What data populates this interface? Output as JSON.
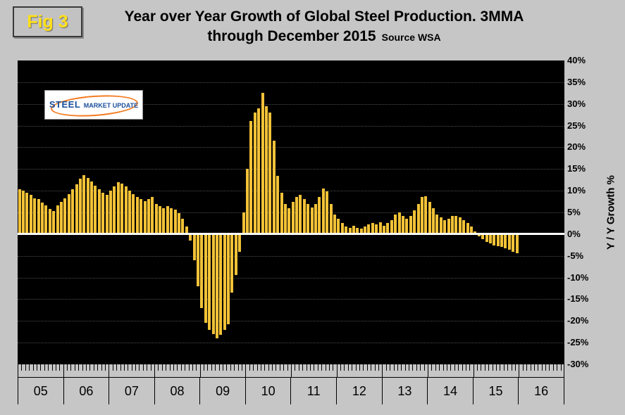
{
  "figure": {
    "label": "Fig 3"
  },
  "title": {
    "line1": "Year over Year Growth of Global Steel Production. 3MMA",
    "line2": "through December 2015",
    "source": "Source WSA"
  },
  "logo": {
    "steel": "STEEL",
    "rest": "MARKET UPDATE"
  },
  "axis": {
    "ylabel": "Y / Y Growth %",
    "yticks": [
      "40%",
      "35%",
      "30%",
      "25%",
      "20%",
      "15%",
      "10%",
      "5%",
      "0%",
      "-5%",
      "-10%",
      "-15%",
      "-20%",
      "-25%",
      "-30%"
    ],
    "years": [
      "05",
      "06",
      "07",
      "08",
      "09",
      "10",
      "11",
      "12",
      "13",
      "14",
      "15",
      "16"
    ]
  },
  "colors": {
    "bar": "#F2C237",
    "plot_bg": "#000000",
    "zero_line": "#FFFFFF",
    "page_bg": "#C6C6C6",
    "fig_label_text": "#FFE019",
    "logo_blue": "#1A4F9C",
    "logo_orange": "#F47B20"
  },
  "chart_data": {
    "type": "bar",
    "title": "Year over Year Growth of Global Steel Production. 3MMA through December 2015",
    "source": "WSA",
    "xlabel": "",
    "ylabel": "Y / Y Growth %",
    "ylim": [
      -30,
      40
    ],
    "ytick_step": 5,
    "frequency": "monthly",
    "x_start": "2005-01",
    "x_end": "2015-12",
    "x_axis_year_groups": [
      "05",
      "06",
      "07",
      "08",
      "09",
      "10",
      "11",
      "12",
      "13",
      "14",
      "15",
      "16"
    ],
    "legend": "none",
    "grid": "faint horizontal dotted on black background",
    "values": [
      10.4,
      10.0,
      9.5,
      9.0,
      8.3,
      8.0,
      7.3,
      6.6,
      5.8,
      5.4,
      6.6,
      7.4,
      8.2,
      9.2,
      10.3,
      11.5,
      12.7,
      13.6,
      13.0,
      12.2,
      11.2,
      10.3,
      9.6,
      9.1,
      10.0,
      11.0,
      12.0,
      11.6,
      11.0,
      10.1,
      9.2,
      8.6,
      8.0,
      7.6,
      8.0,
      8.5,
      7.0,
      6.4,
      6.0,
      6.4,
      6.0,
      5.6,
      4.8,
      3.6,
      1.8,
      -1.5,
      -6.0,
      -12.0,
      -17.0,
      -20.5,
      -22.0,
      -23.0,
      -24.0,
      -23.2,
      -22.0,
      -20.8,
      -13.5,
      -9.5,
      -4.0,
      5.0,
      15.0,
      26.0,
      28.0,
      29.0,
      32.5,
      29.5,
      28.0,
      21.5,
      13.5,
      9.5,
      7.0,
      6.0,
      7.5,
      8.5,
      9.0,
      8.0,
      7.0,
      6.2,
      7.0,
      8.5,
      10.5,
      9.8,
      7.0,
      4.5,
      3.5,
      2.5,
      1.8,
      1.5,
      2.0,
      1.5,
      1.2,
      1.8,
      2.2,
      2.6,
      2.2,
      2.8,
      2.0,
      2.5,
      3.2,
      4.5,
      5.0,
      4.2,
      3.6,
      4.2,
      5.5,
      7.0,
      8.5,
      8.8,
      7.5,
      6.0,
      4.5,
      3.8,
      3.2,
      3.6,
      4.2,
      4.2,
      3.8,
      3.2,
      2.6,
      1.8,
      0.6,
      -0.5,
      -1.2,
      -1.8,
      -2.2,
      -2.6,
      -2.8,
      -3.0,
      -3.2,
      -3.6,
      -4.0,
      -4.4
    ]
  }
}
